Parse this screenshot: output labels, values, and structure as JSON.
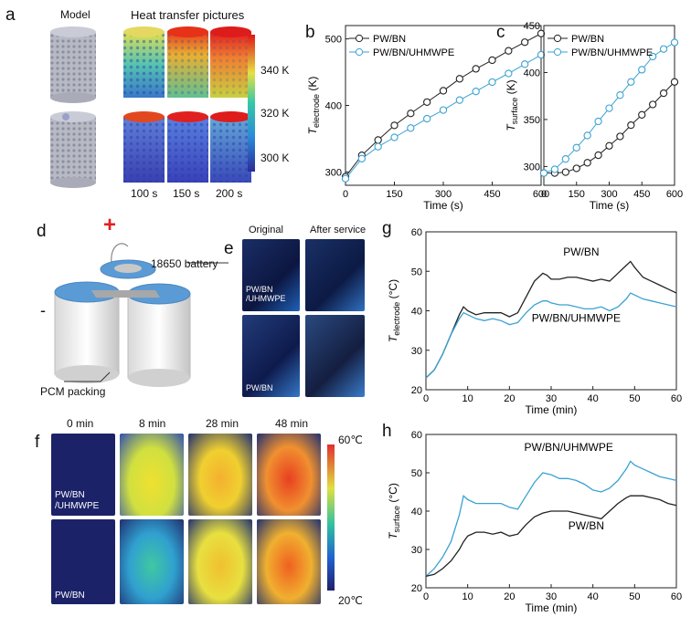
{
  "panels": {
    "a": {
      "letter": "a",
      "model_label": "Model",
      "heat_label": "Heat transfer pictures",
      "time_labels": [
        "100 s",
        "150 s",
        "200 s"
      ],
      "colorbar_ticks": [
        "340 K",
        "320 K",
        "300 K"
      ]
    },
    "d": {
      "letter": "d",
      "plus": "+",
      "minus": "-",
      "battery_label": "18650 battery",
      "pcm_label": "PCM packing"
    },
    "e": {
      "letter": "e",
      "col_labels": [
        "Original",
        "After service"
      ],
      "row_labels": [
        "PW/BN\n/UHMWPE",
        "PW/BN"
      ]
    },
    "f": {
      "letter": "f",
      "col_labels": [
        "0 min",
        "8 min",
        "28 min",
        "48 min"
      ],
      "row_labels": [
        "PW/BN\n/UHMWPE",
        "PW/BN"
      ],
      "colorbar_top": "60℃",
      "colorbar_bottom": "20℃"
    }
  },
  "colors": {
    "black_series": "#222222",
    "blue_series": "#3aa2d3"
  },
  "chart_data": [
    {
      "id": "b",
      "letter": "b",
      "type": "line",
      "xlabel": "Time (s)",
      "ylabel_main": "T",
      "ylabel_sub": "electrode",
      "ylabel_unit": "(K)",
      "xlim": [
        0,
        600
      ],
      "ylim": [
        280,
        520
      ],
      "xticks": [
        0,
        150,
        300,
        450,
        600
      ],
      "yticks": [
        300,
        400,
        500
      ],
      "legend": [
        "PW/BN",
        "PW/BN/UHMWPE"
      ],
      "legend_placement": "top-left",
      "x": [
        0,
        50,
        100,
        150,
        200,
        250,
        300,
        350,
        400,
        450,
        500,
        550,
        600
      ],
      "series": [
        {
          "name": "PW/BN",
          "color": "#222222",
          "values": [
            293,
            325,
            348,
            370,
            388,
            405,
            422,
            440,
            455,
            468,
            482,
            495,
            508
          ]
        },
        {
          "name": "PW/BN/UHMWPE",
          "color": "#3aa2d3",
          "values": [
            290,
            320,
            338,
            352,
            366,
            380,
            393,
            408,
            421,
            435,
            448,
            462,
            476
          ]
        }
      ]
    },
    {
      "id": "c",
      "letter": "c",
      "type": "line",
      "xlabel": "Time (s)",
      "ylabel_main": "T",
      "ylabel_sub": "surface",
      "ylabel_unit": "(K)",
      "xlim": [
        0,
        600
      ],
      "ylim": [
        280,
        450
      ],
      "xticks": [
        0,
        150,
        300,
        450,
        600
      ],
      "yticks": [
        300,
        350,
        400,
        450
      ],
      "legend": [
        "PW/BN",
        "PW/BN/UHMWPE"
      ],
      "legend_placement": "top-left",
      "x": [
        0,
        50,
        100,
        150,
        200,
        250,
        300,
        350,
        400,
        450,
        500,
        550,
        600
      ],
      "series": [
        {
          "name": "PW/BN",
          "color": "#222222",
          "values": [
            293,
            293,
            294,
            298,
            304,
            312,
            322,
            332,
            344,
            355,
            366,
            378,
            390
          ]
        },
        {
          "name": "PW/BN/UHMWPE",
          "color": "#3aa2d3",
          "values": [
            293,
            297,
            308,
            320,
            333,
            348,
            362,
            376,
            390,
            403,
            417,
            425,
            432
          ]
        }
      ]
    },
    {
      "id": "g",
      "letter": "g",
      "type": "line",
      "xlabel": "Time (min)",
      "ylabel_main": "T",
      "ylabel_sub": "electrode",
      "ylabel_unit": "(°C)",
      "xlim": [
        0,
        60
      ],
      "ylim": [
        20,
        60
      ],
      "xticks": [
        0,
        10,
        20,
        30,
        40,
        50,
        60
      ],
      "yticks": [
        20,
        30,
        40,
        50,
        60
      ],
      "annotations": [
        "PW/BN",
        "PW/BN/UHMWPE"
      ],
      "x": [
        0,
        2,
        4,
        6,
        8,
        9,
        10,
        12,
        14,
        16,
        18,
        20,
        22,
        24,
        26,
        28,
        29,
        30,
        32,
        34,
        36,
        38,
        40,
        42,
        44,
        46,
        48,
        49,
        50,
        52,
        54,
        56,
        58,
        60
      ],
      "series": [
        {
          "name": "PW/BN",
          "color": "#222222",
          "values": [
            23,
            25,
            29,
            34,
            39,
            41,
            40,
            39,
            39.5,
            39.5,
            39.5,
            38.5,
            39.5,
            43.5,
            47.5,
            49.5,
            49,
            48,
            48,
            48.5,
            48.5,
            48,
            47.5,
            48,
            47.5,
            49.5,
            51.5,
            52.5,
            51,
            48.5,
            47.5,
            46.5,
            45.5,
            44.5
          ]
        },
        {
          "name": "PW/BN/UHMWPE",
          "color": "#3aa2d3",
          "values": [
            23,
            25,
            29,
            34,
            38,
            39.5,
            39,
            38,
            37.5,
            38,
            37.5,
            36.5,
            37,
            39.5,
            41.5,
            42.5,
            42.5,
            42,
            41.5,
            41.5,
            41,
            40.5,
            40.5,
            41,
            40,
            41,
            43,
            44.5,
            44,
            43,
            42.5,
            42,
            41.5,
            41
          ]
        }
      ]
    },
    {
      "id": "h",
      "letter": "h",
      "type": "line",
      "xlabel": "Time (min)",
      "ylabel_main": "T",
      "ylabel_sub": "surface",
      "ylabel_unit": "(°C)",
      "xlim": [
        0,
        60
      ],
      "ylim": [
        20,
        60
      ],
      "xticks": [
        0,
        10,
        20,
        30,
        40,
        50,
        60
      ],
      "yticks": [
        20,
        30,
        40,
        50,
        60
      ],
      "annotations": [
        "PW/BN/UHMWPE",
        "PW/BN"
      ],
      "x": [
        0,
        2,
        4,
        6,
        8,
        9,
        10,
        12,
        14,
        16,
        18,
        20,
        22,
        24,
        26,
        28,
        30,
        32,
        34,
        36,
        38,
        40,
        42,
        44,
        46,
        48,
        49,
        50,
        52,
        54,
        56,
        58,
        60
      ],
      "series": [
        {
          "name": "PW/BN/UHMWPE",
          "color": "#3aa2d3",
          "values": [
            23,
            25,
            28,
            32,
            39,
            44,
            43,
            42,
            42,
            42,
            42,
            41,
            40.5,
            44,
            47.5,
            50,
            49.5,
            48.5,
            48.5,
            48,
            47,
            45.5,
            45,
            46,
            48,
            51,
            53,
            52,
            51,
            50,
            49,
            48.5,
            48
          ]
        },
        {
          "name": "PW/BN",
          "color": "#222222",
          "values": [
            23,
            23.5,
            25,
            27,
            30,
            32,
            33.5,
            34.5,
            34.5,
            34,
            34.5,
            33.5,
            34,
            36.5,
            38.5,
            39.5,
            40,
            40,
            40,
            39.5,
            39,
            38.5,
            38,
            40,
            42,
            43.5,
            44,
            44,
            44,
            43.5,
            43,
            42,
            41.5
          ]
        }
      ]
    }
  ]
}
